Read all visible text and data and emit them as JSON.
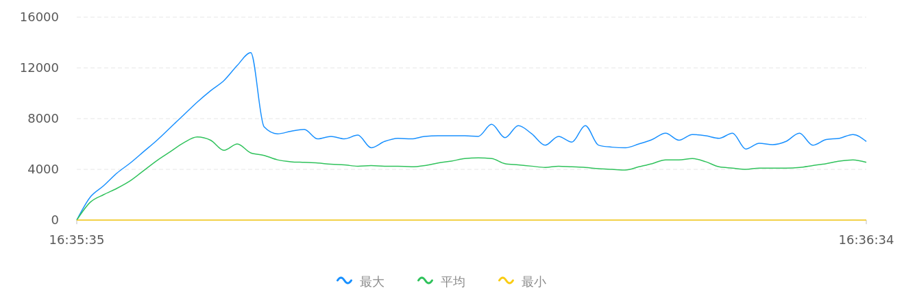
{
  "chart_data": {
    "type": "line",
    "categories": [
      "16:35:35",
      null,
      null,
      null,
      null,
      null,
      null,
      null,
      null,
      null,
      null,
      null,
      null,
      null,
      null,
      null,
      null,
      null,
      null,
      null,
      null,
      null,
      null,
      null,
      null,
      null,
      null,
      null,
      null,
      null,
      null,
      null,
      null,
      null,
      null,
      null,
      null,
      null,
      null,
      null,
      null,
      null,
      null,
      null,
      null,
      null,
      null,
      null,
      null,
      null,
      null,
      null,
      null,
      null,
      null,
      null,
      null,
      null,
      null,
      "16:36:34"
    ],
    "series": [
      {
        "name": "最大",
        "color": "#1890ff",
        "values": [
          0,
          1800,
          2700,
          3700,
          4500,
          5400,
          6300,
          7300,
          8300,
          9300,
          10200,
          11000,
          12200,
          13200,
          7350,
          6800,
          7000,
          7150,
          6400,
          6600,
          6400,
          6700,
          5700,
          6200,
          6450,
          6400,
          6600,
          6650,
          6650,
          6650,
          6600,
          7550,
          6500,
          7450,
          6800,
          5900,
          6600,
          6150,
          7450,
          5900,
          5750,
          5700,
          6000,
          6350,
          6850,
          6300,
          6750,
          6650,
          6450,
          6850,
          5600,
          6050,
          5950,
          6200,
          6850,
          5900,
          6350,
          6450,
          6750,
          6200
        ]
      },
      {
        "name": "平均",
        "color": "#2fc25b",
        "values": [
          0,
          1400,
          2000,
          2500,
          3100,
          3900,
          4700,
          5400,
          6100,
          6550,
          6300,
          5500,
          6000,
          5300,
          5100,
          4750,
          4600,
          4550,
          4500,
          4400,
          4350,
          4250,
          4300,
          4250,
          4250,
          4200,
          4300,
          4500,
          4650,
          4850,
          4900,
          4850,
          4450,
          4350,
          4250,
          4150,
          4250,
          4200,
          4150,
          4050,
          4000,
          3950,
          4200,
          4450,
          4750,
          4750,
          4850,
          4600,
          4200,
          4100,
          4000,
          4100,
          4100,
          4100,
          4150,
          4300,
          4450,
          4650,
          4750,
          4550
        ]
      },
      {
        "name": "最小",
        "color": "#facc14",
        "values": [
          0,
          0,
          0,
          0,
          0,
          0,
          0,
          0,
          0,
          0,
          0,
          0,
          0,
          0,
          0,
          0,
          0,
          0,
          0,
          0,
          0,
          0,
          0,
          0,
          0,
          0,
          0,
          0,
          0,
          0,
          0,
          0,
          0,
          0,
          0,
          0,
          0,
          0,
          0,
          0,
          0,
          0,
          0,
          0,
          0,
          0,
          0,
          0,
          0,
          0,
          0,
          0,
          0,
          0,
          0,
          0,
          0,
          0,
          0,
          0
        ]
      }
    ],
    "ylim": [
      0,
      16000
    ],
    "yticks": [
      0,
      4000,
      8000,
      12000,
      16000
    ],
    "grid": "y",
    "legend": "bottom",
    "line_style": "solid",
    "marker": "none"
  }
}
